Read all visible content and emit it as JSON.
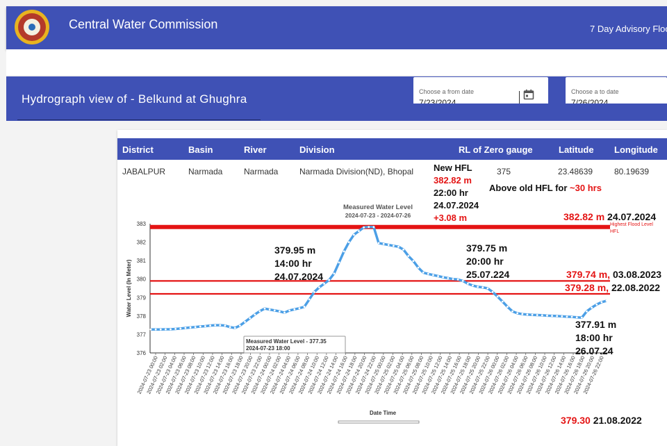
{
  "header": {
    "title": "Central Water Commission",
    "advisory": "7 Day Advisory Floo"
  },
  "hydro": {
    "title": "Hydrograph view of - Belkund at Ghughra",
    "from_label": "Choose a from date",
    "from_value": "7/23/2024",
    "to_label": "Choose a to date",
    "to_value": "7/26/2024"
  },
  "table": {
    "headers": [
      "District",
      "Basin",
      "River",
      "Division",
      "RL of Zero gauge",
      "Latitude",
      "Longitude"
    ],
    "row": [
      "JABALPUR",
      "Narmada",
      "Narmada",
      "Narmada Division(ND), Bhopal",
      "375",
      "23.48639",
      "80.19639"
    ]
  },
  "annotations": {
    "new_hfl": "New HFL",
    "new_hfl_value": "382.82 m",
    "new_hfl_time": "22:00 hr",
    "new_hfl_date": "24.07.2024",
    "new_hfl_rise": "+3.08 m",
    "above_old": "Above old HFL for ",
    "above_old_dur": "~30 hrs",
    "hfl_right_value": "382.82 m",
    "hfl_right_date": " 24.07.2024",
    "line2_value": "379.74 m,",
    "line2_date": " 03.08.2023",
    "line3_value": "379.28 m,",
    "line3_date": " 22.08.2022",
    "bottom_value": "379.30",
    "bottom_date": " 21.08.2022",
    "pt1": "379.95 m\n14:00 hr\n24.07.2024",
    "pt2": "379.75 m\n20:00 hr\n25.07.224",
    "pt3": "377.91 m\n18:00 hr\n26.07.24"
  },
  "chart_data": {
    "type": "line",
    "title": "Measured Water Level",
    "subtitle": "2024-07-23 - 2024-07-26",
    "xlabel": "Date Time",
    "ylabel": "Water Level (In Meter)",
    "ylim": [
      376,
      383
    ],
    "yticks": [
      376,
      377,
      378,
      379,
      380,
      381,
      382,
      383
    ],
    "hfl_level": 382.82,
    "hfl_label": "Highest Flood Level",
    "hfl_short": "HFL",
    "ref_levels": [
      379.9,
      379.2
    ],
    "tooltip": {
      "line1": "Measured Water Level - 377.35",
      "line2": "2024-07-23 18:00"
    },
    "line_color": "#4b9fe6",
    "hfl_color": "#e41414",
    "series": [
      {
        "name": "Measured Water Level",
        "values": [
          377.27,
          377.27,
          377.27,
          377.28,
          377.28,
          377.3,
          377.32,
          377.35,
          377.38,
          377.4,
          377.43,
          377.45,
          377.48,
          377.5,
          377.5,
          377.48,
          377.4,
          377.35,
          377.48,
          377.68,
          377.88,
          378.08,
          378.26,
          378.4,
          378.35,
          378.3,
          378.25,
          378.18,
          378.3,
          378.36,
          378.42,
          378.5,
          378.9,
          379.3,
          379.55,
          379.75,
          379.95,
          380.3,
          380.9,
          381.5,
          382.0,
          382.4,
          382.6,
          382.8,
          382.82,
          382.82,
          381.95,
          381.9,
          381.85,
          381.8,
          381.75,
          381.6,
          381.25,
          380.98,
          380.62,
          380.35,
          380.28,
          380.22,
          380.16,
          380.1,
          380.05,
          380.0,
          379.98,
          379.9,
          379.75,
          379.65,
          379.58,
          379.55,
          379.5,
          379.3,
          379.05,
          378.78,
          378.5,
          378.25,
          378.15,
          378.1,
          378.08,
          378.06,
          378.05,
          378.04,
          378.02,
          378.01,
          378.0,
          377.98,
          377.96,
          377.95,
          377.93,
          377.91,
          378.25,
          378.45,
          378.62,
          378.75,
          378.82
        ]
      }
    ],
    "x_ticks": [
      "2024-07-23 00:00",
      "2024-07-23 02:00",
      "2024-07-23 04:00",
      "2024-07-23 06:00",
      "2024-07-23 08:00",
      "2024-07-23 10:00",
      "2024-07-23 12:00",
      "2024-07-23 14:00",
      "2024-07-23 16:00",
      "2024-07-23 18:00",
      "2024-07-23 20:00",
      "2024-07-23 22:00",
      "2024-07-24 00:00",
      "2024-07-24 02:00",
      "2024-07-24 04:00",
      "2024-07-24 06:00",
      "2024-07-24 08:00",
      "2024-07-24 10:00",
      "2024-07-24 12:00",
      "2024-07-24 14:00",
      "2024-07-24 16:00",
      "2024-07-24 18:00",
      "2024-07-24 20:00",
      "2024-07-24 22:00",
      "2024-07-25 00:00",
      "2024-07-25 02:00",
      "2024-07-25 04:00",
      "2024-07-25 06:00",
      "2024-07-25 08:00",
      "2024-07-25 10:00",
      "2024-07-25 12:00",
      "2024-07-25 14:00",
      "2024-07-25 16:00",
      "2024-07-25 18:00",
      "2024-07-25 20:00",
      "2024-07-25 22:00",
      "2024-07-26 00:00",
      "2024-07-26 02:00",
      "2024-07-26 04:00",
      "2024-07-26 06:00",
      "2024-07-26 08:00",
      "2024-07-26 10:00",
      "2024-07-26 12:00",
      "2024-07-26 14:00",
      "2024-07-26 16:00",
      "2024-07-26 18:00",
      "2024-07-26 20:00",
      "2024-07-26 22:00"
    ]
  }
}
